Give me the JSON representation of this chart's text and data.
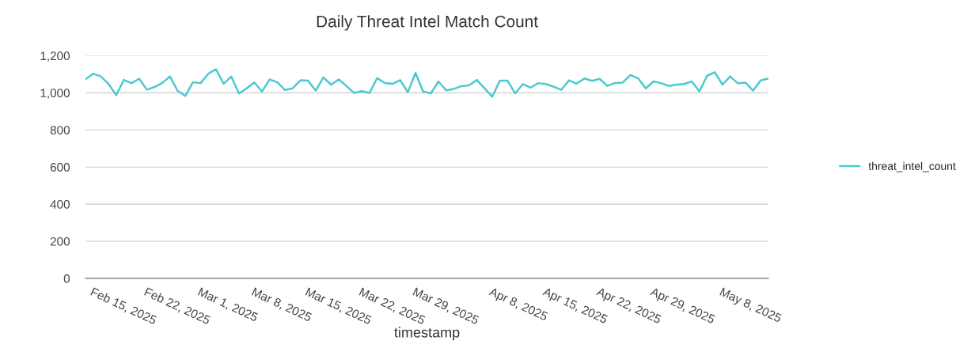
{
  "chart_data": {
    "type": "line",
    "title": "Daily Threat Intel Match Count",
    "xlabel": "timestamp",
    "x": [
      "2025-02-14",
      "2025-02-15",
      "2025-02-16",
      "2025-02-17",
      "2025-02-18",
      "2025-02-19",
      "2025-02-20",
      "2025-02-21",
      "2025-02-22",
      "2025-02-23",
      "2025-02-24",
      "2025-02-25",
      "2025-02-26",
      "2025-02-27",
      "2025-02-28",
      "2025-03-01",
      "2025-03-02",
      "2025-03-03",
      "2025-03-04",
      "2025-03-05",
      "2025-03-06",
      "2025-03-07",
      "2025-03-08",
      "2025-03-09",
      "2025-03-10",
      "2025-03-11",
      "2025-03-12",
      "2025-03-13",
      "2025-03-14",
      "2025-03-15",
      "2025-03-16",
      "2025-03-17",
      "2025-03-18",
      "2025-03-19",
      "2025-03-20",
      "2025-03-21",
      "2025-03-22",
      "2025-03-23",
      "2025-03-24",
      "2025-03-25",
      "2025-03-26",
      "2025-03-27",
      "2025-03-28",
      "2025-03-29",
      "2025-03-30",
      "2025-03-31",
      "2025-04-01",
      "2025-04-02",
      "2025-04-03",
      "2025-04-04",
      "2025-04-05",
      "2025-04-06",
      "2025-04-07",
      "2025-04-08",
      "2025-04-09",
      "2025-04-10",
      "2025-04-11",
      "2025-04-12",
      "2025-04-13",
      "2025-04-14",
      "2025-04-15",
      "2025-04-16",
      "2025-04-17",
      "2025-04-18",
      "2025-04-19",
      "2025-04-20",
      "2025-04-21",
      "2025-04-22",
      "2025-04-23",
      "2025-04-24",
      "2025-04-25",
      "2025-04-26",
      "2025-04-27",
      "2025-04-28",
      "2025-04-29",
      "2025-04-30",
      "2025-05-01",
      "2025-05-02",
      "2025-05-03",
      "2025-05-04",
      "2025-05-05",
      "2025-05-06",
      "2025-05-07",
      "2025-05-08",
      "2025-05-09",
      "2025-05-10",
      "2025-05-11",
      "2025-05-12",
      "2025-05-13",
      "2025-05-14"
    ],
    "series": [
      {
        "name": "threat_intel_count",
        "color": "#4cc9d0",
        "values": [
          1073,
          1103,
          1088,
          1048,
          987,
          1069,
          1052,
          1076,
          1017,
          1031,
          1053,
          1088,
          1011,
          983,
          1057,
          1052,
          1103,
          1127,
          1049,
          1087,
          996,
          1024,
          1056,
          1007,
          1072,
          1056,
          1015,
          1024,
          1067,
          1065,
          1012,
          1083,
          1044,
          1072,
          1037,
          999,
          1009,
          999,
          1079,
          1053,
          1048,
          1068,
          1003,
          1107,
          1007,
          997,
          1061,
          1013,
          1021,
          1036,
          1041,
          1069,
          1024,
          979,
          1065,
          1065,
          997,
          1047,
          1028,
          1052,
          1047,
          1033,
          1016,
          1067,
          1049,
          1077,
          1064,
          1075,
          1037,
          1053,
          1055,
          1096,
          1079,
          1024,
          1061,
          1052,
          1037,
          1044,
          1047,
          1061,
          1008,
          1092,
          1111,
          1044,
          1088,
          1051,
          1055,
          1012,
          1067,
          1077
        ]
      }
    ],
    "xlim": [
      "2025-02-14",
      "2025-05-14"
    ],
    "xticks": [
      {
        "value": "2025-02-15",
        "label": "Feb 15, 2025"
      },
      {
        "value": "2025-02-22",
        "label": "Feb 22, 2025"
      },
      {
        "value": "2025-03-01",
        "label": "Mar 1, 2025"
      },
      {
        "value": "2025-03-08",
        "label": "Mar 8, 2025"
      },
      {
        "value": "2025-03-15",
        "label": "Mar 15, 2025"
      },
      {
        "value": "2025-03-22",
        "label": "Mar 22, 2025"
      },
      {
        "value": "2025-03-29",
        "label": "Mar 29, 2025"
      },
      {
        "value": "2025-04-08",
        "label": "Apr 8, 2025"
      },
      {
        "value": "2025-04-15",
        "label": "Apr 15, 2025"
      },
      {
        "value": "2025-04-22",
        "label": "Apr 22, 2025"
      },
      {
        "value": "2025-04-29",
        "label": "Apr 29, 2025"
      },
      {
        "value": "2025-05-08",
        "label": "May 8, 2025"
      }
    ],
    "ylim": [
      0,
      1200
    ],
    "yticks": [
      0,
      200,
      400,
      600,
      800,
      {
        "value": 1000,
        "label": "1,000"
      },
      {
        "value": 1200,
        "label": "1,200"
      }
    ],
    "grid": "y",
    "legend": "right"
  }
}
